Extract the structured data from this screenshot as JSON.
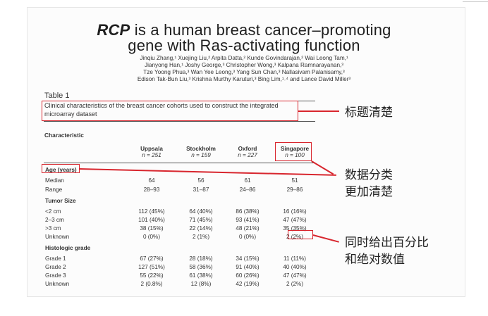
{
  "paper": {
    "title_italic": "RCP",
    "title_line1_rest": " is a human breast cancer–promoting",
    "title_line2": "gene with Ras-activating function",
    "authors": [
      "Jinqiu Zhang,¹ Xuejing Liu,² Arpita Datta,² Kunde Govindarajan,² Wai Leong Tam,¹",
      "Jianyong Han,¹ Joshy George,³ Christopher Wong,³ Kalpana Ramnarayanan,³",
      "Tze Yoong Phua,³ Wan Yee Leong,³ Yang Sun Chan,³ Nallasivam Palanisamy,³",
      "Edison Tak-Bun Liu,³ Krishna Murthy Karuturi,³ Bing Lim,¹˒⁴ and Lance David Miller³"
    ]
  },
  "table": {
    "label": "Table 1",
    "caption_line1": "Clinical characteristics of the breast cancer cohorts used to construct the integrated",
    "caption_line2": "microarray dataset",
    "characteristic_header": "Characteristic",
    "cohorts": [
      {
        "name": "Uppsala",
        "n": "n = 251"
      },
      {
        "name": "Stockholm",
        "n": "n = 159"
      },
      {
        "name": "Oxford",
        "n": "n = 227"
      },
      {
        "name": "Singapore",
        "n": "n = 100"
      }
    ],
    "sections": [
      {
        "title": "Age (years)",
        "rows": [
          {
            "label": "Median",
            "values": [
              "64",
              "56",
              "61",
              "51"
            ]
          },
          {
            "label": "Range",
            "values": [
              "28–93",
              "31–87",
              "24–86",
              "29–86"
            ]
          }
        ]
      },
      {
        "title": "Tumor Size",
        "rows": [
          {
            "label": "<2 cm",
            "values": [
              "112 (45%)",
              "64 (40%)",
              "86 (38%)",
              "16 (16%)"
            ]
          },
          {
            "label": "2–3 cm",
            "values": [
              "101 (40%)",
              "71 (45%)",
              "93 (41%)",
              "47 (47%)"
            ]
          },
          {
            "label": ">3 cm",
            "values": [
              "38 (15%)",
              "22 (14%)",
              "48 (21%)",
              "35 (35%)"
            ]
          },
          {
            "label": "Unknown",
            "values": [
              "0 (0%)",
              "2 (1%)",
              "0 (0%)",
              "2 (2%)"
            ]
          }
        ]
      },
      {
        "title": "Histologic grade",
        "rows": [
          {
            "label": "Grade 1",
            "values": [
              "67 (27%)",
              "28 (18%)",
              "34 (15%)",
              "11 (11%)"
            ]
          },
          {
            "label": "Grade 2",
            "values": [
              "127 (51%)",
              "58 (36%)",
              "91 (40%)",
              "40 (40%)"
            ]
          },
          {
            "label": "Grade 3",
            "values": [
              "55 (22%)",
              "61 (38%)",
              "60 (26%)",
              "47 (47%)"
            ]
          },
          {
            "label": "Unknown",
            "values": [
              "2 (0.8%)",
              "12 (8%)",
              "42 (19%)",
              "2 (2%)"
            ]
          }
        ]
      }
    ]
  },
  "annotations": {
    "title_note": "标题清楚",
    "category_note_line1": "数据分类",
    "category_note_line2": "更加清楚",
    "percent_note_line1": "同时给出百分比",
    "percent_note_line2": "和绝对数值",
    "highlight_color": "#d8262e"
  }
}
